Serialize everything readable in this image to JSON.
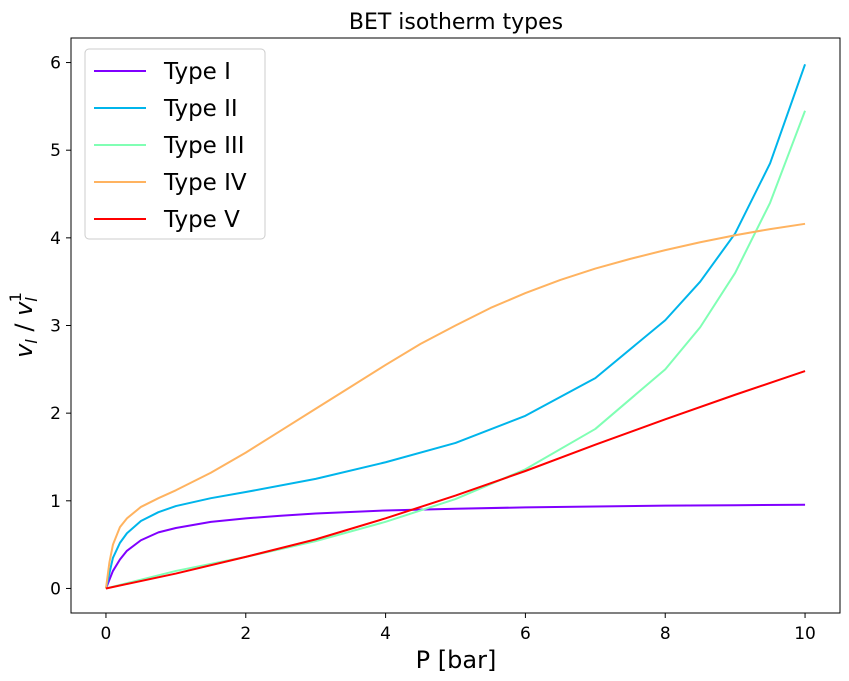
{
  "chart_data": {
    "type": "line",
    "title": "BET isotherm types",
    "xlabel": "P [bar]",
    "ylabel": {
      "base": "v",
      "sub": "l",
      "sup": "1"
    },
    "xlim": [
      -0.5,
      10.5
    ],
    "ylim": [
      -0.28,
      6.28
    ],
    "xticks": [
      0,
      2,
      4,
      6,
      8,
      10
    ],
    "yticks": [
      0,
      1,
      2,
      3,
      4,
      5,
      6
    ],
    "grid": false,
    "legend_position": "upper-left",
    "series": [
      {
        "name": "Type I",
        "color": "#8000ff",
        "x": [
          0,
          0.1,
          0.2,
          0.3,
          0.5,
          0.75,
          1,
          1.5,
          2,
          2.5,
          3,
          4,
          5,
          6,
          7,
          8,
          9,
          10
        ],
        "y": [
          0,
          0.2,
          0.33,
          0.43,
          0.55,
          0.64,
          0.69,
          0.76,
          0.8,
          0.83,
          0.855,
          0.89,
          0.91,
          0.925,
          0.935,
          0.945,
          0.95,
          0.955
        ]
      },
      {
        "name": "Type II",
        "color": "#00b5eb",
        "x": [
          0,
          0.1,
          0.2,
          0.3,
          0.5,
          0.75,
          1,
          1.5,
          2,
          3,
          4,
          5,
          6,
          7,
          8,
          8.5,
          9,
          9.5,
          10
        ],
        "y": [
          0,
          0.35,
          0.52,
          0.63,
          0.77,
          0.87,
          0.94,
          1.03,
          1.1,
          1.25,
          1.44,
          1.66,
          1.97,
          2.4,
          3.06,
          3.5,
          4.05,
          4.85,
          5.98
        ]
      },
      {
        "name": "Type III",
        "color": "#80ffb4",
        "x": [
          0,
          0.5,
          1,
          2,
          3,
          4,
          5,
          6,
          7,
          8,
          8.5,
          9,
          9.5,
          10
        ],
        "y": [
          0,
          0.1,
          0.2,
          0.36,
          0.54,
          0.76,
          1.02,
          1.36,
          1.82,
          2.5,
          2.98,
          3.6,
          4.4,
          5.45
        ]
      },
      {
        "name": "Type IV",
        "color": "#ffb360",
        "x": [
          0,
          0.05,
          0.1,
          0.2,
          0.3,
          0.5,
          0.75,
          1,
          1.5,
          2,
          2.5,
          3,
          3.5,
          4,
          4.5,
          5,
          5.5,
          6,
          6.5,
          7,
          7.5,
          8,
          8.5,
          9,
          9.5,
          10
        ],
        "y": [
          0,
          0.3,
          0.5,
          0.7,
          0.8,
          0.93,
          1.03,
          1.12,
          1.32,
          1.55,
          1.8,
          2.05,
          2.3,
          2.55,
          2.79,
          3.0,
          3.2,
          3.37,
          3.52,
          3.65,
          3.76,
          3.86,
          3.95,
          4.03,
          4.1,
          4.16
        ]
      },
      {
        "name": "Type V",
        "color": "#ff0000",
        "x": [
          0,
          1,
          2,
          3,
          4,
          5,
          6,
          7,
          8,
          9,
          10
        ],
        "y": [
          0,
          0.17,
          0.36,
          0.56,
          0.8,
          1.06,
          1.34,
          1.64,
          1.93,
          2.21,
          2.48
        ]
      }
    ]
  }
}
